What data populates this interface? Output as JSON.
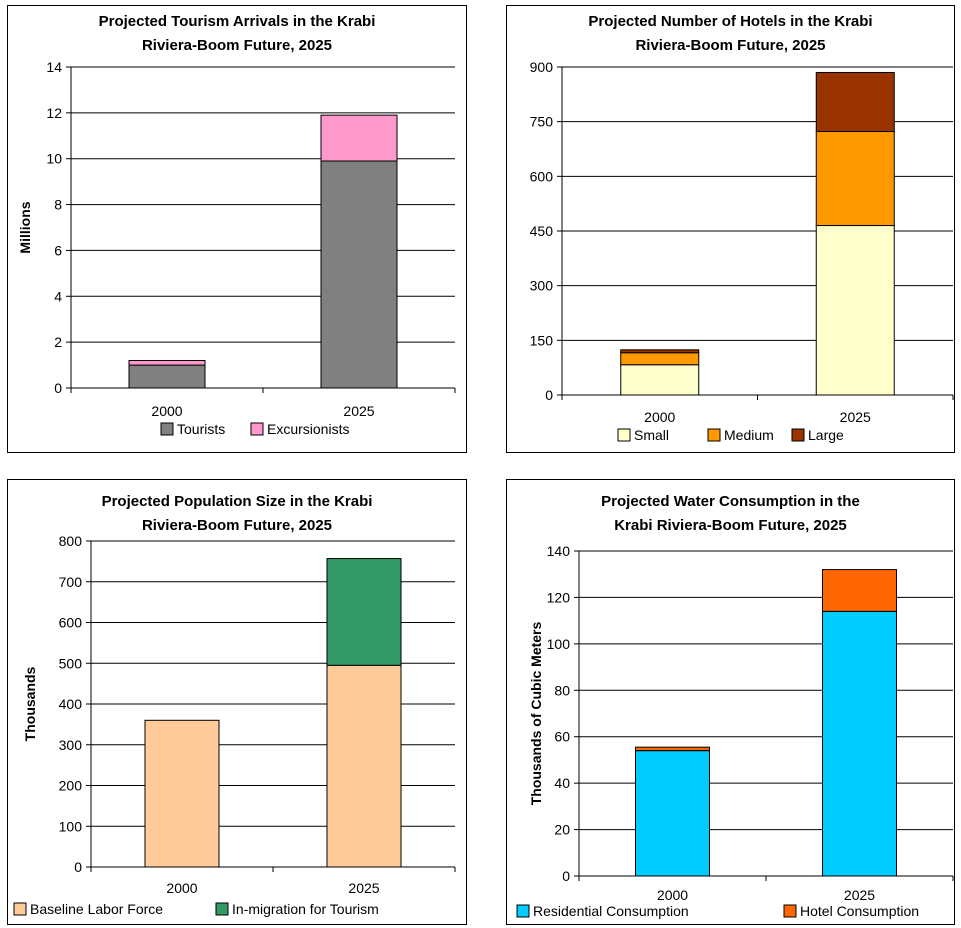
{
  "chart_data": [
    {
      "type": "bar",
      "stacked": true,
      "title_lines": [
        "Projected Tourism Arrivals in the Krabi",
        "Riviera-Boom Future, 2025"
      ],
      "ylabel": "Millions",
      "categories": [
        "2000",
        "2025"
      ],
      "ylim": [
        0,
        14
      ],
      "yticks": [
        "0",
        "2",
        "4",
        "6",
        "8",
        "10",
        "12",
        "14"
      ],
      "series": [
        {
          "name": "Tourists",
          "values": [
            1.0,
            9.9
          ],
          "color": "#808080"
        },
        {
          "name": "Excursionists",
          "values": [
            0.2,
            2.0
          ],
          "color": "#ff99cc"
        }
      ],
      "grid": true,
      "legend": "bottom"
    },
    {
      "type": "bar",
      "stacked": true,
      "title_lines": [
        "Projected Number of Hotels in the Krabi",
        "Riviera-Boom Future, 2025"
      ],
      "ylabel": "",
      "categories": [
        "2000",
        "2025"
      ],
      "ylim": [
        0,
        900
      ],
      "yticks": [
        "0",
        "150",
        "300",
        "450",
        "600",
        "750",
        "900"
      ],
      "series": [
        {
          "name": "Small",
          "values": [
            83,
            465
          ],
          "color": "#ffffcc"
        },
        {
          "name": "Medium",
          "values": [
            33,
            258
          ],
          "color": "#ff9900"
        },
        {
          "name": "Large",
          "values": [
            8,
            162
          ],
          "color": "#993300"
        }
      ],
      "grid": true,
      "legend": "bottom"
    },
    {
      "type": "bar",
      "stacked": true,
      "title_lines": [
        "Projected Population Size in the Krabi",
        "Riviera-Boom Future, 2025"
      ],
      "ylabel": "Thousands",
      "categories": [
        "2000",
        "2025"
      ],
      "ylim": [
        0,
        800
      ],
      "yticks": [
        "0",
        "100",
        "200",
        "300",
        "400",
        "500",
        "600",
        "700",
        "800"
      ],
      "series": [
        {
          "name": "Baseline Labor Force",
          "values": [
            360,
            495
          ],
          "color": "#ffcc99"
        },
        {
          "name": "In-migration for Tourism",
          "values": [
            0,
            262
          ],
          "color": "#339966"
        }
      ],
      "grid": true,
      "legend": "bottom"
    },
    {
      "type": "bar",
      "stacked": true,
      "title_lines": [
        "Projected Water Consumption in the",
        "Krabi Riviera-Boom Future, 2025"
      ],
      "ylabel": "Thousands of Cubic Meters",
      "categories": [
        "2000",
        "2025"
      ],
      "ylim": [
        0,
        140
      ],
      "yticks": [
        "0",
        "20",
        "40",
        "60",
        "80",
        "100",
        "120",
        "140"
      ],
      "series": [
        {
          "name": "Residential Consumption",
          "values": [
            54,
            114
          ],
          "color": "#00ccff"
        },
        {
          "name": "Hotel Consumption",
          "values": [
            1.5,
            18
          ],
          "color": "#ff6600"
        }
      ],
      "grid": true,
      "legend": "bottom"
    }
  ]
}
